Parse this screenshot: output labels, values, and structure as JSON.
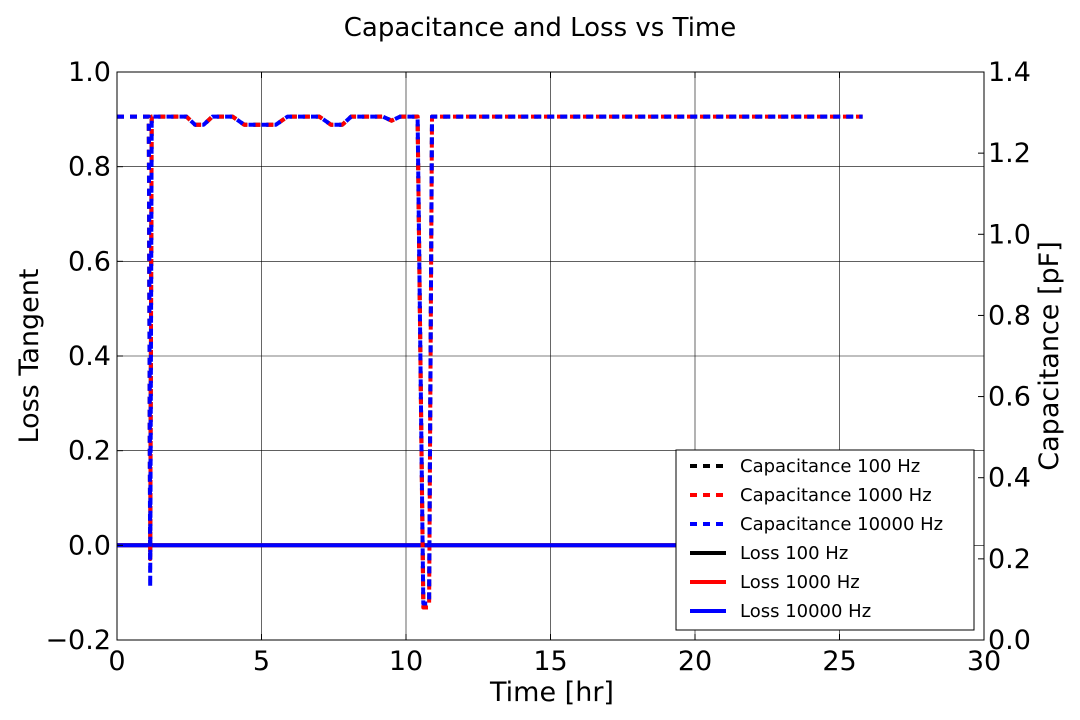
{
  "chart_data": {
    "type": "line",
    "title": "Capacitance and Loss vs Time",
    "xlabel": "Time [hr]",
    "ylabel_left": "Loss Tangent",
    "ylabel_right": "Capacitance [pF]",
    "xlim": [
      0,
      30
    ],
    "ylim_left": [
      -0.2,
      1.0
    ],
    "ylim_right": [
      0.0,
      1.4
    ],
    "x_ticks": [
      "0",
      "5",
      "10",
      "15",
      "20",
      "25",
      "30"
    ],
    "y_ticks_left": [
      "−0.2",
      "0.0",
      "0.2",
      "0.4",
      "0.6",
      "0.8",
      "1.0"
    ],
    "y_ticks_right": [
      "0.0",
      "0.2",
      "0.4",
      "0.6",
      "0.8",
      "1.0",
      "1.2",
      "1.4"
    ],
    "grid": true,
    "legend_position": "lower-right",
    "series": [
      {
        "name": "Capacitance 100 Hz",
        "axis": "right",
        "style": "dashed",
        "color": "#000000",
        "points": [
          [
            0,
            1.29
          ],
          [
            1.1,
            1.29
          ],
          [
            1.15,
            0.2
          ],
          [
            1.2,
            1.29
          ],
          [
            2.4,
            1.29
          ],
          [
            2.7,
            1.27
          ],
          [
            3.0,
            1.27
          ],
          [
            3.3,
            1.29
          ],
          [
            4.0,
            1.29
          ],
          [
            4.4,
            1.27
          ],
          [
            5.5,
            1.27
          ],
          [
            5.9,
            1.29
          ],
          [
            7.0,
            1.29
          ],
          [
            7.4,
            1.27
          ],
          [
            7.8,
            1.27
          ],
          [
            8.1,
            1.29
          ],
          [
            9.2,
            1.29
          ],
          [
            9.5,
            1.28
          ],
          [
            9.8,
            1.29
          ],
          [
            10.4,
            1.29
          ],
          [
            10.6,
            0.1
          ],
          [
            10.8,
            0.1
          ],
          [
            10.9,
            1.29
          ],
          [
            25.8,
            1.29
          ]
        ]
      },
      {
        "name": "Capacitance 1000 Hz",
        "axis": "right",
        "style": "dashed",
        "color": "#ff0000",
        "points": [
          [
            0,
            1.29
          ],
          [
            1.1,
            1.29
          ],
          [
            1.15,
            0.2
          ],
          [
            1.2,
            1.29
          ],
          [
            2.4,
            1.29
          ],
          [
            2.7,
            1.27
          ],
          [
            3.0,
            1.27
          ],
          [
            3.3,
            1.29
          ],
          [
            4.0,
            1.29
          ],
          [
            4.4,
            1.27
          ],
          [
            5.5,
            1.27
          ],
          [
            5.9,
            1.29
          ],
          [
            7.0,
            1.29
          ],
          [
            7.4,
            1.27
          ],
          [
            7.8,
            1.27
          ],
          [
            8.1,
            1.29
          ],
          [
            9.2,
            1.29
          ],
          [
            9.5,
            1.28
          ],
          [
            9.8,
            1.29
          ],
          [
            10.4,
            1.29
          ],
          [
            10.6,
            0.08
          ],
          [
            10.8,
            0.08
          ],
          [
            10.9,
            1.29
          ],
          [
            25.8,
            1.29
          ]
        ]
      },
      {
        "name": "Capacitance 10000 Hz",
        "axis": "right",
        "style": "dashed",
        "color": "#0000ff",
        "points": [
          [
            0,
            1.29
          ],
          [
            1.1,
            1.29
          ],
          [
            1.15,
            0.13
          ],
          [
            1.2,
            1.29
          ],
          [
            2.4,
            1.29
          ],
          [
            2.7,
            1.27
          ],
          [
            3.0,
            1.27
          ],
          [
            3.3,
            1.29
          ],
          [
            4.0,
            1.29
          ],
          [
            4.4,
            1.27
          ],
          [
            5.5,
            1.27
          ],
          [
            5.9,
            1.29
          ],
          [
            7.0,
            1.29
          ],
          [
            7.4,
            1.27
          ],
          [
            7.8,
            1.27
          ],
          [
            8.1,
            1.29
          ],
          [
            9.2,
            1.29
          ],
          [
            9.5,
            1.28
          ],
          [
            9.8,
            1.29
          ],
          [
            10.4,
            1.29
          ],
          [
            10.6,
            0.09
          ],
          [
            10.8,
            0.09
          ],
          [
            10.9,
            1.29
          ],
          [
            25.8,
            1.29
          ]
        ]
      },
      {
        "name": "Loss 100 Hz",
        "axis": "left",
        "style": "solid",
        "color": "#000000",
        "points": [
          [
            0,
            0.0
          ],
          [
            25.8,
            0.0
          ]
        ]
      },
      {
        "name": "Loss 1000 Hz",
        "axis": "left",
        "style": "solid",
        "color": "#ff0000",
        "points": [
          [
            0,
            0.0
          ],
          [
            25.8,
            0.0
          ]
        ]
      },
      {
        "name": "Loss 10000 Hz",
        "axis": "left",
        "style": "solid",
        "color": "#0000ff",
        "points": [
          [
            0,
            0.0
          ],
          [
            25.8,
            0.0
          ]
        ]
      }
    ]
  }
}
